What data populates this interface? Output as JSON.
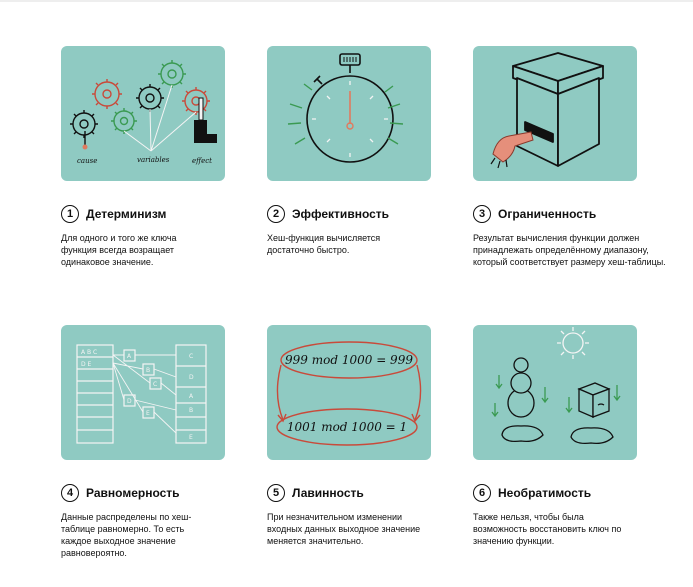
{
  "cards": [
    {
      "number": "1",
      "title": "Детерминизм",
      "desc": "Для одного и того же ключа функция всегда возращает одинаковое значение.",
      "illustration": {
        "icon": "gears-cause-effect-icon",
        "labels": {
          "cause": "cause",
          "variables": "variables",
          "effect": "effect"
        }
      }
    },
    {
      "number": "2",
      "title": "Эффективность",
      "desc": "Хеш-функция вычисляется достаточно быстро.",
      "illustration": {
        "icon": "stopwatch-icon"
      }
    },
    {
      "number": "3",
      "title": "Ограниченность",
      "desc": "Результат вычисления функции должен принадлежать определённому диапазону, который соответствует размеру хеш-таблицы.",
      "illustration": {
        "icon": "box-with-paw-icon"
      }
    },
    {
      "number": "4",
      "title": "Равномерность",
      "desc": "Данные распределены по хеш-таблице равномерно. То есть каждое выходное значение равновероятно.",
      "illustration": {
        "icon": "hash-table-mapping-icon",
        "left_cells": [
          "A B C",
          "D E"
        ],
        "keys": [
          "A",
          "B",
          "C",
          "D",
          "E"
        ],
        "right_cells": [
          "C",
          "D",
          "A",
          "B",
          "E"
        ]
      }
    },
    {
      "number": "5",
      "title": "Лавинность",
      "desc": "При незначительном изменении входных данных выходное значение меняется значительно.",
      "illustration": {
        "icon": "modulo-arrows-icon",
        "line1": "999 mod 1000 = 999",
        "line2": "1001 mod 1000 = 1"
      }
    },
    {
      "number": "6",
      "title": "Необратимость",
      "desc": "Также нельзя, чтобы была возможность восстановить ключ по значению функции.",
      "illustration": {
        "icon": "melting-snowman-icon"
      }
    }
  ],
  "colors": {
    "tile": "#8fcac2",
    "line": "#111111",
    "green": "#3a9a52",
    "red": "#c94a3a",
    "accent": "#e07a5f",
    "paw": "#e58f7b"
  }
}
